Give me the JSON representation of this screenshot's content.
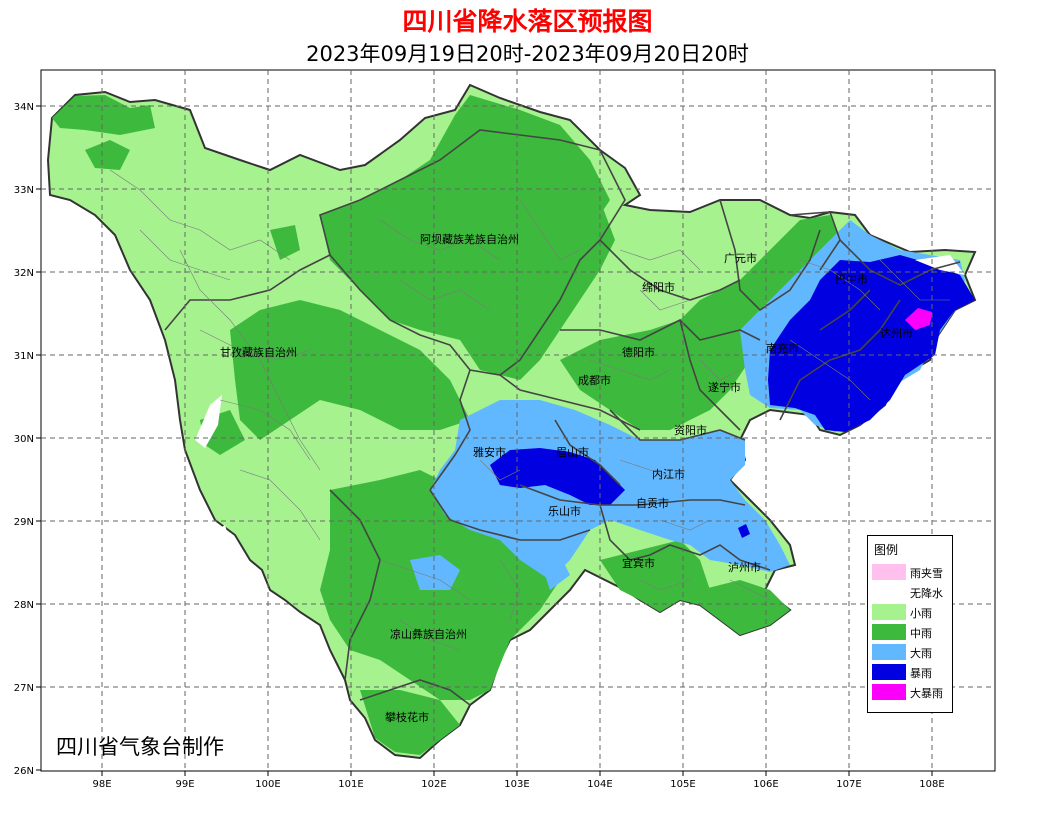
{
  "title": "四川省降水落区预报图",
  "subtitle": "2023年09月19日20时-2023年09月20日20时",
  "credit": "四川省气象台制作",
  "axes": {
    "x_ticks": [
      "98E",
      "99E",
      "100E",
      "101E",
      "102E",
      "103E",
      "104E",
      "105E",
      "106E",
      "107E",
      "108E"
    ],
    "y_ticks": [
      "34N",
      "33N",
      "32N",
      "31N",
      "30N",
      "29N",
      "28N",
      "27N",
      "26N"
    ]
  },
  "regions": [
    "阿坝藏族羌族自治州",
    "广元市",
    "绵阳市",
    "巴中市",
    "达州市",
    "南充市",
    "德阳市",
    "成都市",
    "甘孜藏族自治州",
    "遂宁市",
    "资阳市",
    "雅安市",
    "眉山市",
    "内江市",
    "乐山市",
    "自贡市",
    "宜宾市",
    "泸州市",
    "凉山彝族自治州",
    "攀枝花市"
  ],
  "legend": {
    "title": "图例",
    "items": [
      {
        "label": "雨夹雪",
        "color": "#ffc0ee"
      },
      {
        "label": "无降水",
        "color": "#ffffff"
      },
      {
        "label": "小雨",
        "color": "#a6f28f"
      },
      {
        "label": "中雨",
        "color": "#3dba3d"
      },
      {
        "label": "大雨",
        "color": "#61b8ff"
      },
      {
        "label": "暴雨",
        "color": "#0000e1"
      },
      {
        "label": "大暴雨",
        "color": "#fa00fa"
      }
    ]
  }
}
